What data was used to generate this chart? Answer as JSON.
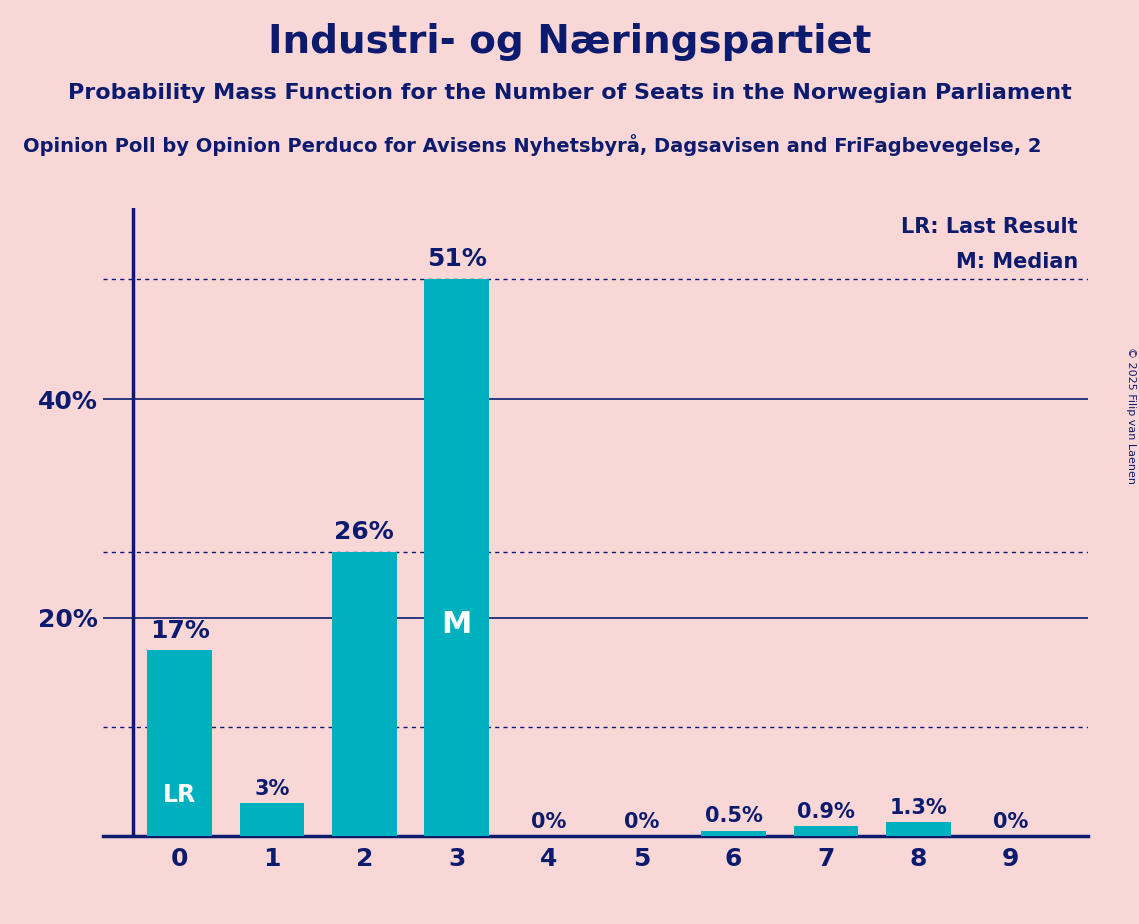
{
  "title": "Industri- og Næringspartiet",
  "subtitle": "Probability Mass Function for the Number of Seats in the Norwegian Parliament",
  "source": "Opinion Poll by Opinion Perduco for Avisens Nyhetsbyrå, Dagsavisen and FriFagbevegelse, 2",
  "copyright": "© 2025 Filip van Laenen",
  "categories": [
    0,
    1,
    2,
    3,
    4,
    5,
    6,
    7,
    8,
    9
  ],
  "values": [
    0.17,
    0.03,
    0.26,
    0.51,
    0.0,
    0.0,
    0.005,
    0.009,
    0.013,
    0.0
  ],
  "labels": [
    "17%",
    "3%",
    "26%",
    "51%",
    "0%",
    "0%",
    "0.5%",
    "0.9%",
    "1.3%",
    "0%"
  ],
  "bar_color": "#00B0BF",
  "background_color": "#FAD7D7",
  "text_color": "#0D1B6E",
  "lr_bar": 0,
  "median_bar": 3,
  "dotted_lines": [
    0.51,
    0.26,
    0.1
  ],
  "solid_lines": [
    0.4,
    0.2
  ],
  "legend_lr": "LR: Last Result",
  "legend_m": "M: Median",
  "lr_label": "LR",
  "m_label": "M",
  "ylim": [
    0,
    0.575
  ],
  "title_fontsize": 28,
  "subtitle_fontsize": 16,
  "source_fontsize": 14,
  "axis_label_fontsize": 18,
  "bar_label_fontsize_large": 18,
  "bar_label_fontsize_small": 15
}
